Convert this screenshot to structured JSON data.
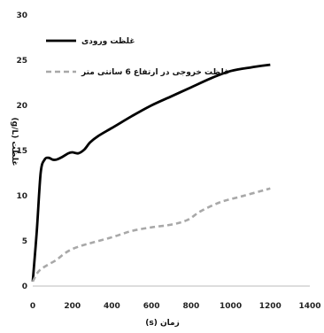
{
  "chart_data": {
    "type": "line",
    "xlabel": "زمان (s)",
    "ylabel": "غلظت (g/L)",
    "xlim": [
      0,
      1400
    ],
    "ylim": [
      0,
      30
    ],
    "xticks": [
      0,
      200,
      400,
      600,
      800,
      1000,
      1200,
      1400
    ],
    "yticks": [
      0,
      5,
      10,
      15,
      20,
      25,
      30
    ],
    "grid": false,
    "legend_position": "top-right",
    "series": [
      {
        "name": "غلظت ورودی",
        "color": "#000000",
        "style": "solid",
        "points": [
          [
            0,
            0.5
          ],
          [
            20,
            6
          ],
          [
            40,
            12.5
          ],
          [
            60,
            14
          ],
          [
            80,
            14.2
          ],
          [
            100,
            14
          ],
          [
            120,
            14
          ],
          [
            150,
            14.3
          ],
          [
            180,
            14.7
          ],
          [
            200,
            14.8
          ],
          [
            230,
            14.7
          ],
          [
            260,
            15.1
          ],
          [
            290,
            15.9
          ],
          [
            330,
            16.6
          ],
          [
            400,
            17.5
          ],
          [
            500,
            18.8
          ],
          [
            600,
            20
          ],
          [
            700,
            21
          ],
          [
            800,
            22
          ],
          [
            900,
            23
          ],
          [
            1000,
            23.8
          ],
          [
            1100,
            24.2
          ],
          [
            1200,
            24.5
          ]
        ]
      },
      {
        "name": "غلظت خروجی در ارتفاع 6 سانتی متر",
        "color": "#a8a8a8",
        "style": "dashed",
        "points": [
          [
            0,
            0.5
          ],
          [
            25,
            1.5
          ],
          [
            50,
            2
          ],
          [
            80,
            2.4
          ],
          [
            120,
            2.9
          ],
          [
            160,
            3.6
          ],
          [
            200,
            4.1
          ],
          [
            250,
            4.5
          ],
          [
            300,
            4.8
          ],
          [
            400,
            5.4
          ],
          [
            500,
            6.1
          ],
          [
            600,
            6.5
          ],
          [
            700,
            6.8
          ],
          [
            780,
            7.3
          ],
          [
            850,
            8.3
          ],
          [
            950,
            9.3
          ],
          [
            1050,
            9.9
          ],
          [
            1150,
            10.5
          ],
          [
            1200,
            10.8
          ]
        ]
      }
    ]
  }
}
